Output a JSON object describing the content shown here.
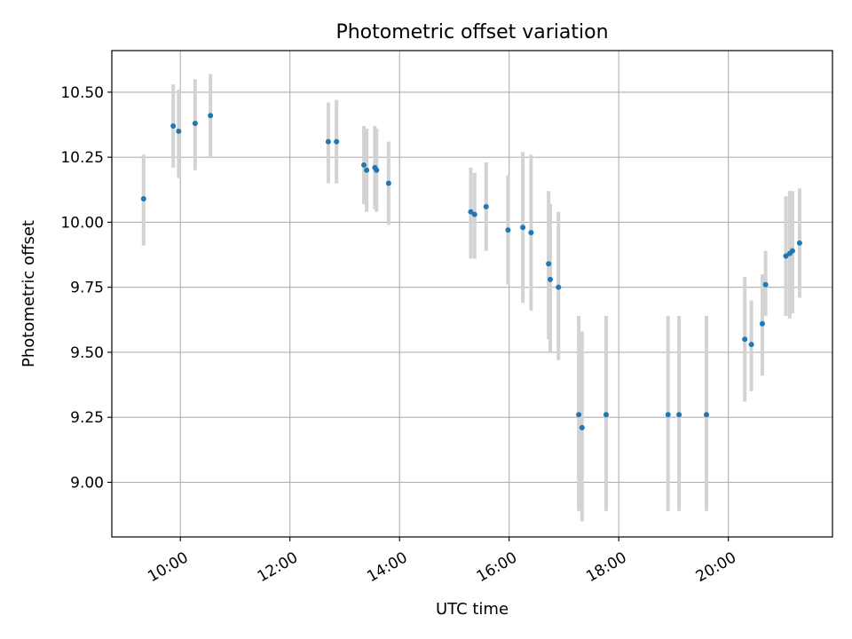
{
  "chart_data": {
    "type": "scatter",
    "title": "Photometric offset variation",
    "xlabel": "UTC time",
    "ylabel": "Photometric offset",
    "x_unit": "hours UTC",
    "xlim": [
      8.75,
      21.9
    ],
    "ylim": [
      8.79,
      10.66
    ],
    "grid": true,
    "x_ticks": [
      {
        "value": 10,
        "label": "10:00"
      },
      {
        "value": 12,
        "label": "12:00"
      },
      {
        "value": 14,
        "label": "14:00"
      },
      {
        "value": 16,
        "label": "16:00"
      },
      {
        "value": 18,
        "label": "18:00"
      },
      {
        "value": 20,
        "label": "20:00"
      }
    ],
    "y_ticks": [
      {
        "value": 9.0,
        "label": "9.00"
      },
      {
        "value": 9.25,
        "label": "9.25"
      },
      {
        "value": 9.5,
        "label": "9.50"
      },
      {
        "value": 9.75,
        "label": "9.75"
      },
      {
        "value": 10.0,
        "label": "10.00"
      },
      {
        "value": 10.25,
        "label": "10.25"
      },
      {
        "value": 10.5,
        "label": "10.50"
      }
    ],
    "points": [
      {
        "x": 9.33,
        "y": 10.09,
        "ymin": 9.91,
        "ymax": 10.26
      },
      {
        "x": 9.87,
        "y": 10.37,
        "ymin": 10.21,
        "ymax": 10.53
      },
      {
        "x": 9.97,
        "y": 10.35,
        "ymin": 10.17,
        "ymax": 10.51
      },
      {
        "x": 10.27,
        "y": 10.38,
        "ymin": 10.2,
        "ymax": 10.55
      },
      {
        "x": 10.55,
        "y": 10.41,
        "ymin": 10.25,
        "ymax": 10.57
      },
      {
        "x": 12.7,
        "y": 10.31,
        "ymin": 10.15,
        "ymax": 10.46
      },
      {
        "x": 12.85,
        "y": 10.31,
        "ymin": 10.15,
        "ymax": 10.47
      },
      {
        "x": 13.35,
        "y": 10.22,
        "ymin": 10.07,
        "ymax": 10.37
      },
      {
        "x": 13.4,
        "y": 10.2,
        "ymin": 10.04,
        "ymax": 10.36
      },
      {
        "x": 13.55,
        "y": 10.21,
        "ymin": 10.05,
        "ymax": 10.37
      },
      {
        "x": 13.58,
        "y": 10.2,
        "ymin": 10.04,
        "ymax": 10.36
      },
      {
        "x": 13.8,
        "y": 10.15,
        "ymin": 9.99,
        "ymax": 10.31
      },
      {
        "x": 15.3,
        "y": 10.04,
        "ymin": 9.86,
        "ymax": 10.21
      },
      {
        "x": 15.37,
        "y": 10.03,
        "ymin": 9.86,
        "ymax": 10.19
      },
      {
        "x": 15.58,
        "y": 10.06,
        "ymin": 9.89,
        "ymax": 10.23
      },
      {
        "x": 15.98,
        "y": 9.97,
        "ymin": 9.76,
        "ymax": 10.18
      },
      {
        "x": 16.25,
        "y": 9.98,
        "ymin": 9.69,
        "ymax": 10.27
      },
      {
        "x": 16.4,
        "y": 9.96,
        "ymin": 9.66,
        "ymax": 10.26
      },
      {
        "x": 16.72,
        "y": 9.84,
        "ymin": 9.55,
        "ymax": 10.12
      },
      {
        "x": 16.75,
        "y": 9.78,
        "ymin": 9.5,
        "ymax": 10.07
      },
      {
        "x": 16.9,
        "y": 9.75,
        "ymin": 9.47,
        "ymax": 10.04
      },
      {
        "x": 17.27,
        "y": 9.26,
        "ymin": 8.89,
        "ymax": 9.64
      },
      {
        "x": 17.33,
        "y": 9.21,
        "ymin": 8.85,
        "ymax": 9.58
      },
      {
        "x": 17.77,
        "y": 9.26,
        "ymin": 8.89,
        "ymax": 9.64
      },
      {
        "x": 18.9,
        "y": 9.26,
        "ymin": 8.89,
        "ymax": 9.64
      },
      {
        "x": 19.1,
        "y": 9.26,
        "ymin": 8.89,
        "ymax": 9.64
      },
      {
        "x": 19.6,
        "y": 9.26,
        "ymin": 8.89,
        "ymax": 9.64
      },
      {
        "x": 20.3,
        "y": 9.55,
        "ymin": 9.31,
        "ymax": 9.79
      },
      {
        "x": 20.42,
        "y": 9.53,
        "ymin": 9.35,
        "ymax": 9.7
      },
      {
        "x": 20.62,
        "y": 9.61,
        "ymin": 9.41,
        "ymax": 9.8
      },
      {
        "x": 20.68,
        "y": 9.76,
        "ymin": 9.64,
        "ymax": 9.89
      },
      {
        "x": 21.05,
        "y": 9.87,
        "ymin": 9.64,
        "ymax": 10.1
      },
      {
        "x": 21.12,
        "y": 9.88,
        "ymin": 9.63,
        "ymax": 10.12
      },
      {
        "x": 21.17,
        "y": 9.89,
        "ymin": 9.65,
        "ymax": 10.12
      },
      {
        "x": 21.3,
        "y": 9.92,
        "ymin": 9.71,
        "ymax": 10.13
      }
    ],
    "colors": {
      "marker": "#1f77b4",
      "errorbar": "#d3d3d3",
      "grid": "#b0b0b0",
      "axes": "#000000"
    }
  }
}
